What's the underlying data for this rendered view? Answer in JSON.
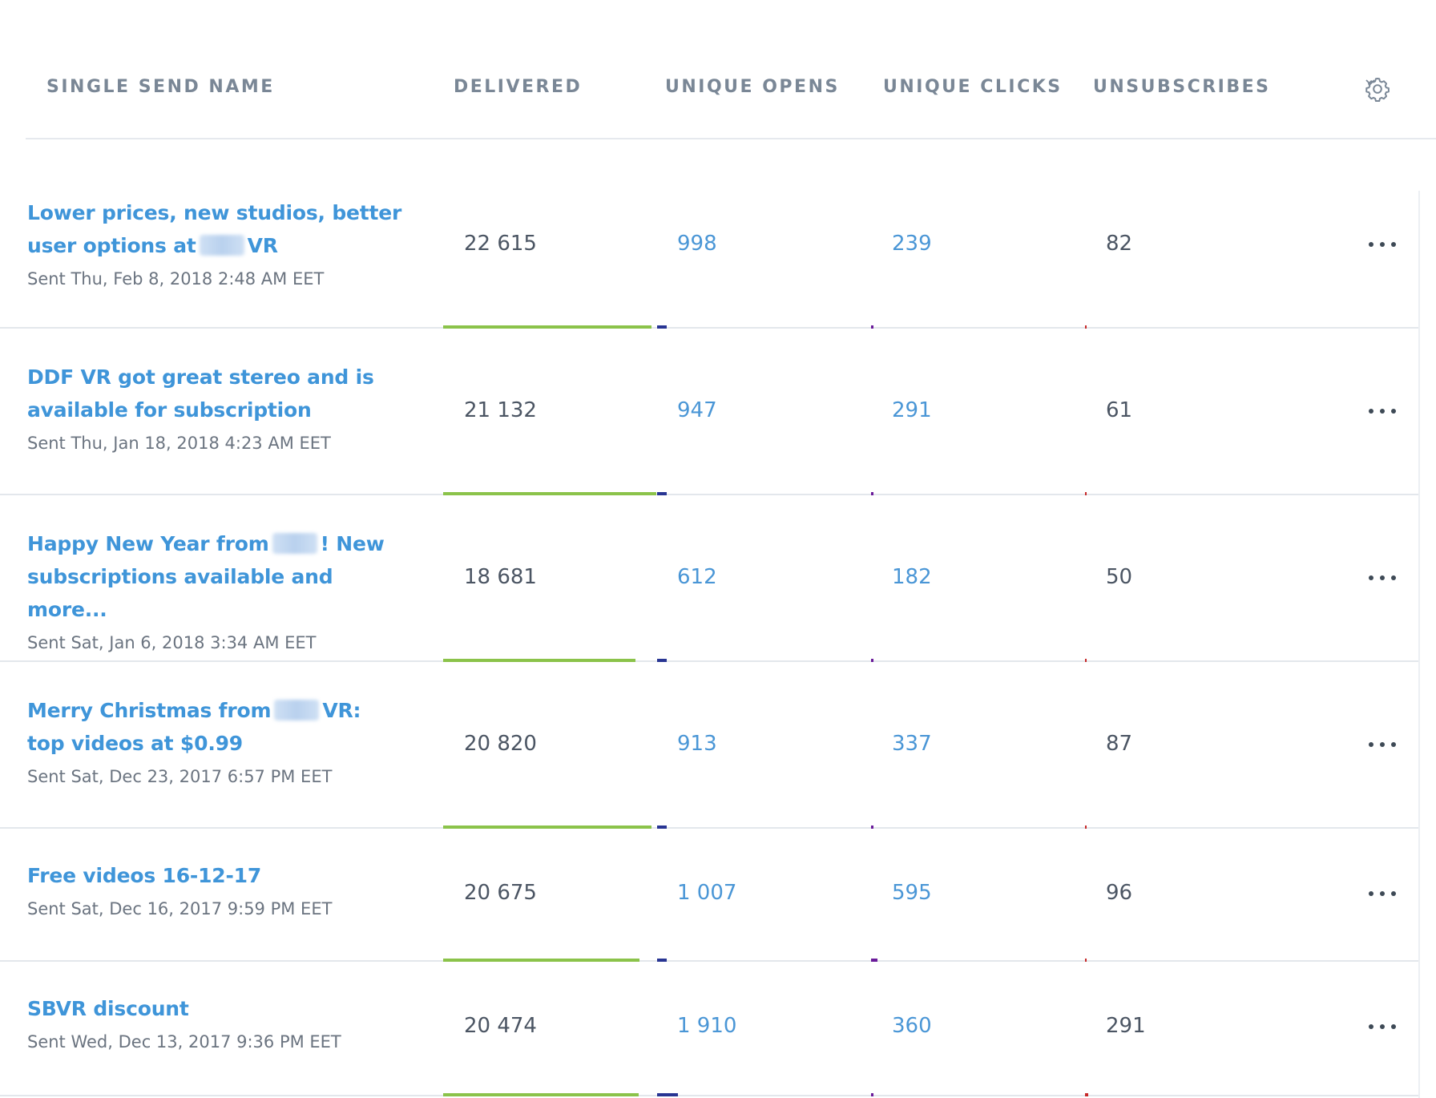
{
  "header": {
    "col_name": "SINGLE SEND NAME",
    "col_delivered": "DELIVERED",
    "col_opens": "UNIQUE OPENS",
    "col_clicks": "UNIQUE CLICKS",
    "col_unsubscribes": "UNSUBSCRIBES",
    "settings_icon": "gear-icon",
    "dropdown_icon": "chevron-down-icon"
  },
  "colors": {
    "link_blue": "#3f95d9",
    "delivered_bar": "#8bc34a",
    "opens_bar": "#283593",
    "clicks_bar": "#6a1b9a",
    "unsub_bar": "#c62828"
  },
  "rows": [
    {
      "title_a": "Lower prices, new studios, better user options at",
      "title_b": "VR",
      "sent": "Sent Thu, Feb 8, 2018 2:48 AM EET",
      "delivered": "22 615",
      "opens": "998",
      "clicks": "239",
      "unsubscribes": "82"
    },
    {
      "title_a": "DDF VR got great stereo and is available for subscription",
      "title_b": "",
      "sent": "Sent Thu, Jan 18, 2018 4:23 AM EET",
      "delivered": "21 132",
      "opens": "947",
      "clicks": "291",
      "unsubscribes": "61"
    },
    {
      "title_a": "Happy New Year from",
      "title_b": "! New subscriptions available and more...",
      "sent": "Sent Sat, Jan 6, 2018 3:34 AM EET",
      "delivered": "18 681",
      "opens": "612",
      "clicks": "182",
      "unsubscribes": "50"
    },
    {
      "title_a": "Merry Christmas from",
      "title_b": "VR: top videos at $0.99",
      "sent": "Sent Sat, Dec 23, 2017 6:57 PM EET",
      "delivered": "20 820",
      "opens": "913",
      "clicks": "337",
      "unsubscribes": "87"
    },
    {
      "title_a": "Free videos 16-12-17",
      "title_b": "",
      "sent": "Sent Sat, Dec 16, 2017 9:59 PM EET",
      "delivered": "20 675",
      "opens": "1 007",
      "clicks": "595",
      "unsubscribes": "96"
    },
    {
      "title_a": "SBVR discount",
      "title_b": "",
      "sent": "Sent Wed, Dec 13, 2017 9:36 PM EET",
      "delivered": "20 474",
      "opens": "1 910",
      "clicks": "360",
      "unsubscribes": "291"
    }
  ]
}
